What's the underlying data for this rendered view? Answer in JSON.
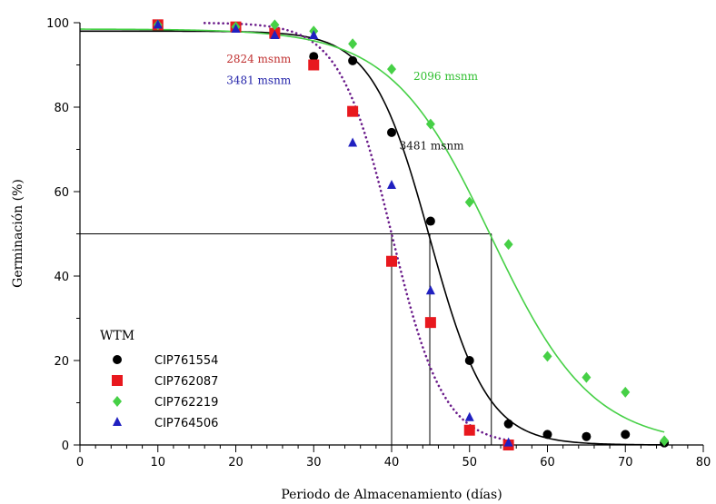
{
  "chart_data": {
    "type": "scatter",
    "title": "",
    "xlabel": "Periodo de Almacenamiento (días)",
    "ylabel": "Germinación (%)",
    "xlim": [
      0,
      80
    ],
    "ylim": [
      0,
      100
    ],
    "xticks": [
      0,
      10,
      20,
      30,
      40,
      50,
      60,
      70,
      80
    ],
    "yticks": [
      0,
      20,
      40,
      60,
      80,
      100
    ],
    "xtick_labels": [
      "0",
      "10",
      "20",
      "30",
      "40",
      "50",
      "60",
      "70",
      "80"
    ],
    "ytick_labels": [
      "0",
      "20",
      "40",
      "60",
      "80",
      "100"
    ],
    "grid": false,
    "legend_title": "WTM",
    "legend_position": "bottom-left",
    "series": [
      {
        "name": "CIP761554",
        "marker": "circle",
        "color": "#000000",
        "x": [
          10,
          20,
          25,
          30,
          35,
          40,
          45,
          50,
          55,
          60,
          65,
          70,
          75
        ],
        "y": [
          99.5,
          99,
          97.5,
          92,
          91,
          74,
          53,
          20,
          5,
          2.5,
          2,
          2.5,
          0.5
        ],
        "fit": {
          "type": "logistic",
          "x50": 44.9,
          "k": 0.27,
          "top": 98,
          "bottom": 0,
          "x_range": [
            0,
            75
          ],
          "style": "solid",
          "color": "#000000"
        }
      },
      {
        "name": "CIP762087",
        "marker": "square",
        "color": "#e8181e",
        "x": [
          10,
          20,
          25,
          30,
          35,
          40,
          45,
          50,
          55
        ],
        "y": [
          99.5,
          99,
          97.5,
          90,
          79,
          43.5,
          29,
          3.5,
          0
        ],
        "fit": {
          "type": "logistic",
          "x50": 40,
          "k": 0.3,
          "top": 100,
          "bottom": 0,
          "x_range": [
            16,
            55
          ],
          "style": "dotted",
          "color": "#6a1b8a"
        }
      },
      {
        "name": "CIP762219",
        "marker": "diamond",
        "color": "#46d046",
        "x": [
          10,
          20,
          25,
          30,
          35,
          40,
          45,
          50,
          55,
          60,
          65,
          70,
          75
        ],
        "y": [
          99.5,
          99,
          99.5,
          98,
          95,
          89,
          76,
          57.5,
          47.5,
          21,
          16,
          12.5,
          1
        ],
        "fit": {
          "type": "logistic",
          "x50": 52.8,
          "k": 0.155,
          "top": 98.5,
          "bottom": 0,
          "x_range": [
            0,
            75
          ],
          "style": "solid",
          "color": "#46d046"
        }
      },
      {
        "name": "CIP764506",
        "marker": "triangle",
        "color": "#2020c0",
        "x": [
          10,
          20,
          25,
          30,
          35,
          40,
          45,
          50,
          55
        ],
        "y": [
          99.5,
          98.5,
          97,
          97,
          71.5,
          61.5,
          36.5,
          6.5,
          0.5
        ]
      }
    ],
    "reference_lines": {
      "y50": 50,
      "x_drops": [
        40,
        44.9,
        52.8
      ],
      "color": "#000000"
    },
    "annotations": [
      {
        "text": "2824 msnm",
        "color": "#c03030",
        "x": 18.8,
        "y": 90.5
      },
      {
        "text": "3481 msnm",
        "color": "#2020a8",
        "x": 18.8,
        "y": 85.5
      },
      {
        "text": "2096 msnm",
        "color": "#2fbf2f",
        "x": 42.8,
        "y": 86.5
      },
      {
        "text": "3481 msnm",
        "color": "#111111",
        "x": 41,
        "y": 70
      }
    ]
  }
}
